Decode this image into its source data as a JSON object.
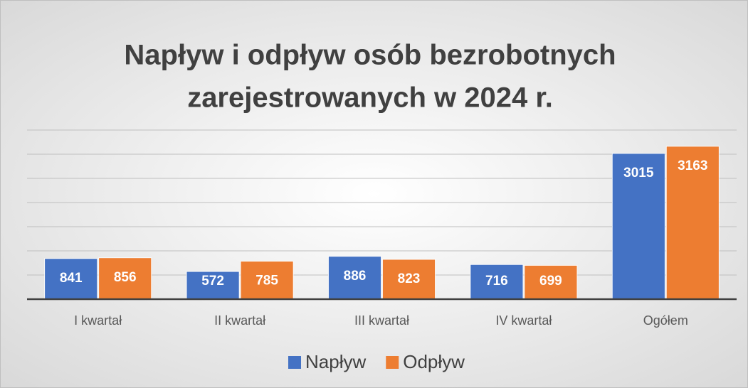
{
  "chart_data": {
    "type": "bar",
    "title": [
      "Napływ i odpływ osób bezrobotnych",
      "zarejestrowanych w 2024 r."
    ],
    "categories": [
      "I kwartał",
      "II kwartał",
      "III kwartał",
      "IV kwartał",
      "Ogółem"
    ],
    "series": [
      {
        "name": "Napływ",
        "color": "#4472c4",
        "values": [
          841,
          572,
          886,
          716,
          3015
        ]
      },
      {
        "name": "Odpływ",
        "color": "#ed7d31",
        "values": [
          856,
          785,
          823,
          699,
          3163
        ]
      }
    ],
    "ylim": [
      0,
      3500
    ],
    "yticks": [
      0,
      500,
      1000,
      1500,
      2000,
      2500,
      3000,
      3500
    ],
    "grid": true,
    "tick_labels": false,
    "legend": "bottom"
  }
}
